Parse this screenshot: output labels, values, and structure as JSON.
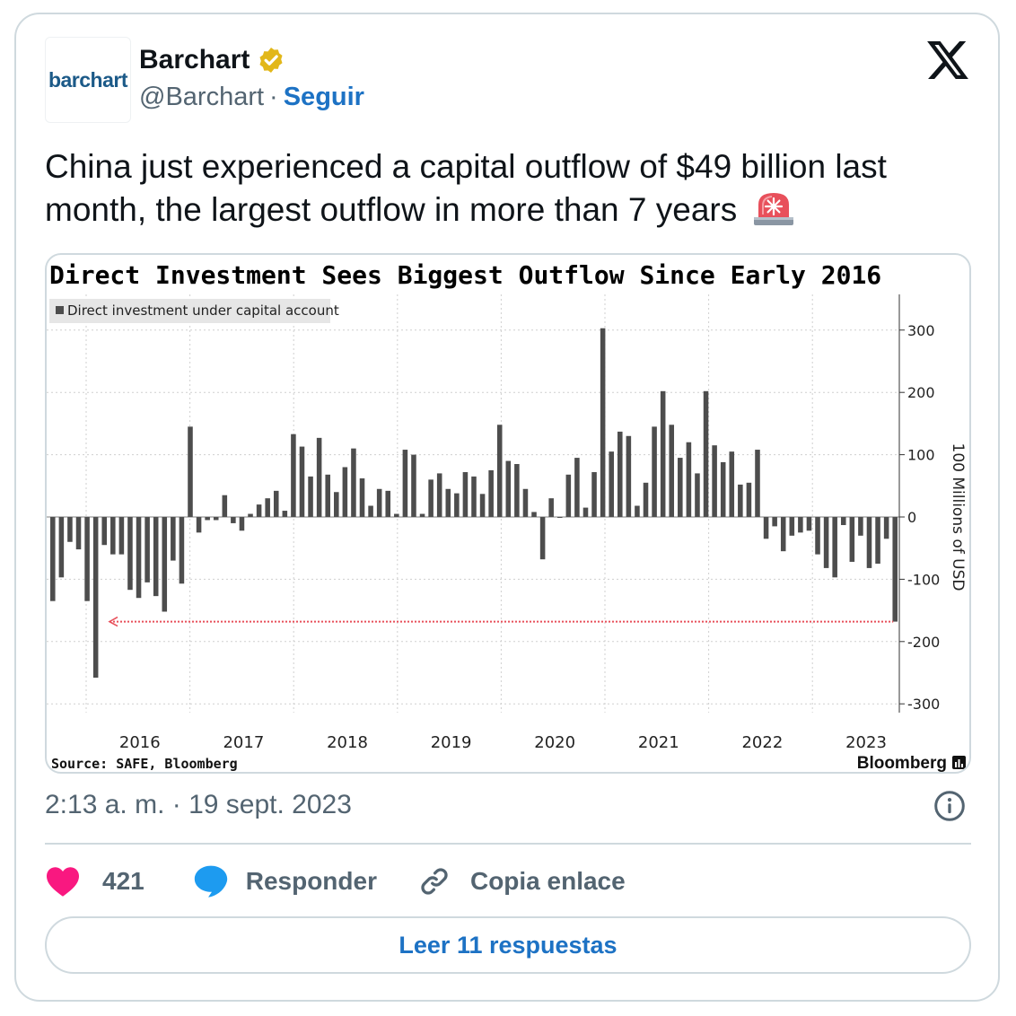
{
  "author": {
    "display_name": "Barchart",
    "handle": "@Barchart",
    "separator": "·",
    "follow_label": "Seguir",
    "avatar_text": "barchart",
    "verified": true
  },
  "tweet": {
    "text": "China just experienced a capital outflow of $49 billion last month, the largest outflow in more than 7 years",
    "emoji_icon": "rotating-light-icon"
  },
  "meta": {
    "time": "2:13 a. m.",
    "separator": "·",
    "date": "19 sept. 2023"
  },
  "actions": {
    "like_count": "421",
    "reply_label": "Responder",
    "copy_label": "Copia enlace"
  },
  "read_replies_label": "Leer 11 respuestas",
  "colors": {
    "accent": "#1d72c4",
    "like": "#f91880",
    "reply_bubble": "#1d9bf0",
    "bar": "#4d4d4d",
    "reference_line": "#e8505b"
  },
  "chart_data": {
    "type": "bar",
    "title": "Direct Investment Sees Biggest Outflow Since Early 2016",
    "legend": "Direct investment under capital account",
    "legend_position": "top-left",
    "ylabel": "100 Millions of USD",
    "ylim": [
      -330,
      350
    ],
    "yticks": [
      300,
      200,
      100,
      0,
      -100,
      -200,
      -300
    ],
    "y_axis_side": "right",
    "grid": true,
    "x_tick_labels": [
      "2016",
      "2017",
      "2018",
      "2019",
      "2020",
      "2021",
      "2022",
      "2023"
    ],
    "source": "Source: SAFE, Bloomberg",
    "brand": "Bloomberg",
    "series": [
      {
        "name": "Direct investment under capital account",
        "values": [
          -135,
          -97,
          -40,
          -52,
          -135,
          -258,
          -45,
          -60,
          -60,
          -117,
          -130,
          -105,
          -127,
          -152,
          -70,
          -107,
          145,
          -25,
          -5,
          -5,
          35,
          -10,
          -22,
          5,
          20,
          30,
          42,
          10,
          133,
          113,
          65,
          127,
          68,
          40,
          80,
          110,
          62,
          18,
          45,
          42,
          5,
          108,
          100,
          5,
          60,
          70,
          45,
          38,
          72,
          65,
          37,
          75,
          148,
          90,
          85,
          45,
          8,
          -68,
          30,
          0,
          68,
          95,
          15,
          72,
          303,
          105,
          137,
          130,
          18,
          55,
          145,
          202,
          148,
          95,
          120,
          70,
          202,
          115,
          88,
          105,
          52,
          55,
          108,
          -35,
          -15,
          -55,
          -30,
          -25,
          -22,
          -60,
          -82,
          -97,
          -13,
          -72,
          -30,
          -82,
          -75,
          -35,
          -168
        ]
      }
    ],
    "annotation": "reference line at latest value -168 extending back to early 2016"
  }
}
